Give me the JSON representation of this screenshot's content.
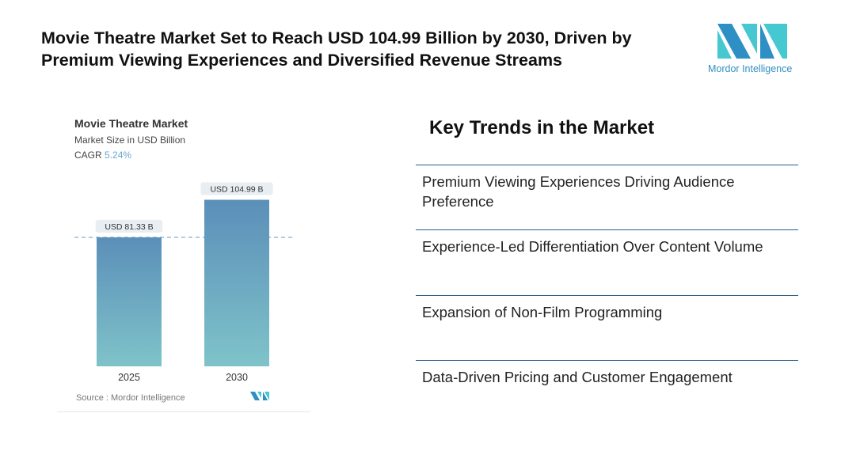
{
  "header": {
    "title": "Movie Theatre Market Set to Reach USD 104.99 Billion by 2030, Driven by Premium Viewing Experiences and Diversified Revenue Streams",
    "logo_text": "Mordor Intelligence"
  },
  "chart_data": {
    "type": "bar",
    "title": "Movie Theatre Market",
    "subtitle": "Market Size in USD Billion",
    "cagr_label": "CAGR",
    "cagr_value": "5.24%",
    "categories": [
      "2025",
      "2030"
    ],
    "values": [
      81.33,
      104.99
    ],
    "data_labels": [
      "USD 81.33 B",
      "USD 104.99 B"
    ],
    "ylim": [
      0,
      110
    ],
    "grid": false,
    "reference_line": "dashed at 2025 value",
    "colors": {
      "bar_top": "#5b8fb9",
      "bar_bottom": "#7fc3c9",
      "ref_line": "#8fb3cf"
    },
    "source": "Source :  Mordor Intelligence"
  },
  "trends": {
    "title": "Key Trends in the Market",
    "items": [
      "Premium Viewing Experiences Driving Audience Preference",
      "Experience-Led Differentiation Over Content Volume",
      "Expansion of Non-Film Programming",
      "Data-Driven Pricing and Customer Engagement"
    ]
  }
}
